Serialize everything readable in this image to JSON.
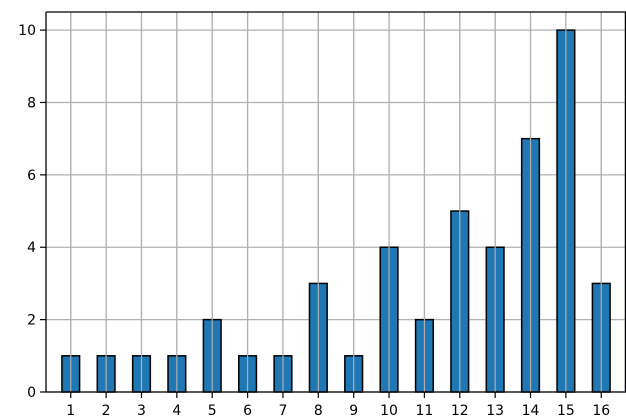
{
  "chart_data": {
    "type": "bar",
    "title": "",
    "xlabel": "",
    "ylabel": "",
    "categories": [
      "1",
      "2",
      "3",
      "4",
      "5",
      "6",
      "7",
      "8",
      "9",
      "10",
      "11",
      "12",
      "13",
      "14",
      "15",
      "16"
    ],
    "values": [
      1,
      1,
      1,
      1,
      2,
      1,
      1,
      3,
      1,
      4,
      2,
      5,
      4,
      7,
      10,
      3
    ],
    "ylim": [
      0,
      10.5
    ],
    "yticks": [
      "0",
      "2",
      "4",
      "6",
      "8",
      "10"
    ],
    "grid": true,
    "legend": "none",
    "colors": {
      "bar_fill": "#1f77b4",
      "bar_edge": "#000000",
      "grid": "#b0b0b0",
      "axis": "#000000"
    }
  }
}
